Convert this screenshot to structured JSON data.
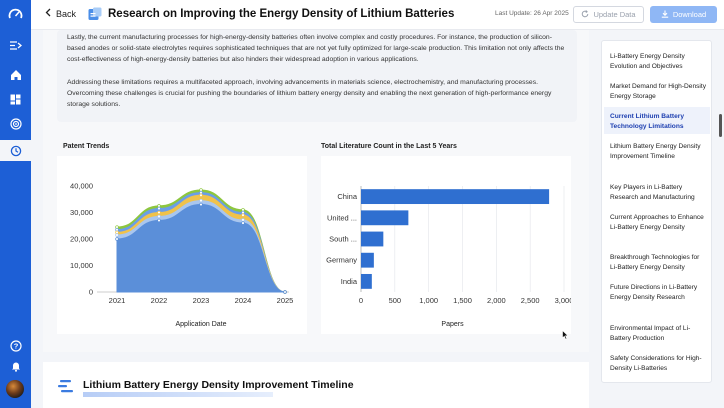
{
  "header": {
    "back_label": "Back",
    "title": "Research on Improving the Energy Density of Lithium Batteries",
    "last_update": "Last Update: 26 Apr 2025",
    "update_button": "Update Data",
    "download_button": "Download"
  },
  "content": {
    "paragraph_1": "Lastly, the current manufacturing processes for high-energy-density batteries often involve complex and costly procedures. For instance, the production of silicon-based anodes or solid-state electrolytes requires sophisticated techniques that are not yet fully optimized for large-scale production. This limitation not only affects the cost-effectiveness of high-energy-density batteries but also hinders their widespread adoption in various applications.",
    "paragraph_2": "Addressing these limitations requires a multifaceted approach, involving advancements in materials science, electrochemistry, and manufacturing processes. Overcoming these challenges is crucial for pushing the boundaries of lithium battery energy density and enabling the next generation of high-performance energy storage solutions."
  },
  "patent_panel": {
    "title": "Patent Trends"
  },
  "literature_panel": {
    "title": "Total Literature Count in the Last 5 Years"
  },
  "chart_data": [
    {
      "type": "area",
      "title": "Patent Trends",
      "xlabel": "Application Date",
      "ylabel": "",
      "x": [
        "2021",
        "2022",
        "2023",
        "2024",
        "2025"
      ],
      "ylim": [
        0,
        40000
      ],
      "yticks": [
        "0",
        "10,000",
        "20,000",
        "30,000",
        "40,000"
      ],
      "series": [
        {
          "values": [
            20000,
            27000,
            33000,
            26000,
            0
          ],
          "color": "#5b8fd9"
        },
        {
          "values": [
            21500,
            28500,
            34500,
            27200,
            0
          ],
          "color": "#a9c6ee"
        },
        {
          "values": [
            22500,
            30000,
            36500,
            29000,
            0
          ],
          "color": "#f0c24b"
        },
        {
          "values": [
            23500,
            31500,
            37500,
            30000,
            0
          ],
          "color": "#6b9ee8"
        },
        {
          "values": [
            24500,
            32500,
            38500,
            31000,
            0
          ],
          "color": "#8dc63f"
        }
      ]
    },
    {
      "type": "bar",
      "orientation": "horizontal",
      "title": "Total Literature Count in the Last 5 Years",
      "xlabel": "Papers",
      "categories": [
        "China",
        "United ...",
        "South ...",
        "Germany",
        "India"
      ],
      "values": [
        2780,
        700,
        330,
        190,
        160
      ],
      "xlim": [
        0,
        3000
      ],
      "xticks": [
        "0",
        "500",
        "1,000",
        "1,500",
        "2,000",
        "2,500",
        "3,000"
      ],
      "color": "#2f6fd0"
    }
  ],
  "section2": {
    "title": "Lithium Battery Energy Density Improvement Timeline"
  },
  "toc": {
    "items": [
      "Li-Battery Energy Density Evolution and Objectives",
      "Market Demand for High-Density Energy Storage",
      "Current Lithium Battery Technology Limitations",
      "Lithium Battery Energy Density Improvement Timeline",
      "Key Players in Li-Battery Research and Manufacturing",
      "Current Approaches to Enhance Li-Battery Energy Density",
      "Breakthrough Technologies for Li-Battery Energy Density",
      "Future Directions in Li-Battery Energy Density Research",
      "Environmental Impact of Li-Battery Production",
      "Safety Considerations for High-Density Li-Batteries"
    ],
    "active_index": 2
  },
  "icons": {
    "rail": [
      "logo-icon",
      "expand-icon",
      "home-icon",
      "dashboard-icon",
      "radar-icon",
      "history-icon",
      "help-icon",
      "notification-icon"
    ],
    "accent": "#1d5fd6"
  }
}
